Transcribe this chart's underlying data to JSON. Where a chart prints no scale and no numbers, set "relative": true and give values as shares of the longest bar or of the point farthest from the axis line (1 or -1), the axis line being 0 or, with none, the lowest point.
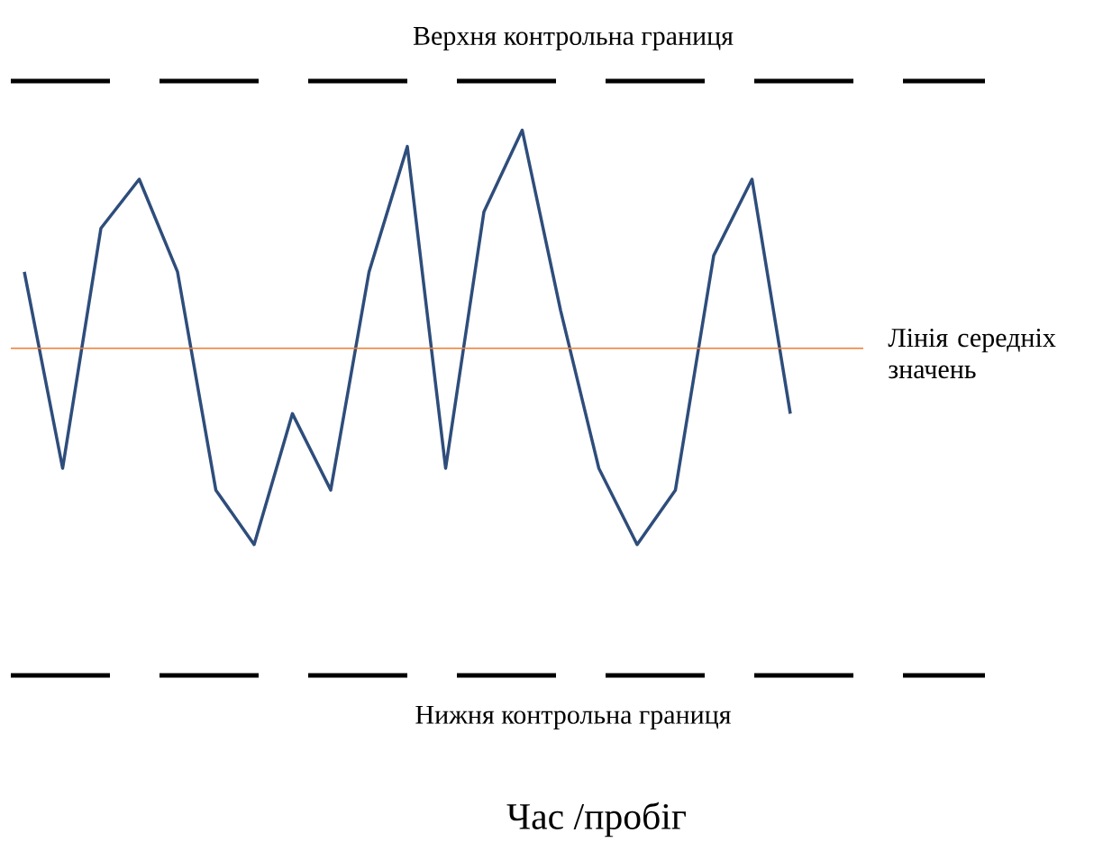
{
  "chart_data": {
    "type": "line",
    "relative": true,
    "annotations": [
      "Час /пробіг"
    ],
    "categories": [
      null,
      null,
      null,
      null,
      null,
      null,
      null,
      null,
      null,
      null,
      null,
      null,
      null,
      null,
      null,
      null,
      null,
      null,
      null,
      null,
      null
    ],
    "series": [
      {
        "color": "#2e4d7b",
        "values": [
          0.74,
          0.38,
          0.82,
          0.91,
          0.74,
          0.34,
          0.24,
          0.48,
          0.34,
          0.74,
          0.97,
          0.38,
          0.85,
          1,
          0.67,
          0.38,
          0.24,
          0.34,
          0.77,
          0.91,
          0.48
        ]
      }
    ],
    "ref_lines": [
      {
        "axis": "y",
        "value": 1.09,
        "label": "Верхня контрольна границя",
        "color": "#000000",
        "line_style": "dashed"
      },
      {
        "axis": "y",
        "value": 0.6,
        "label": "Лінія середніх значень",
        "color": "#ed7d31",
        "line_style": "solid"
      },
      {
        "axis": "y",
        "value": 0,
        "label": "Нижня контрольна границя",
        "color": "#000000",
        "line_style": "dashed"
      }
    ]
  }
}
